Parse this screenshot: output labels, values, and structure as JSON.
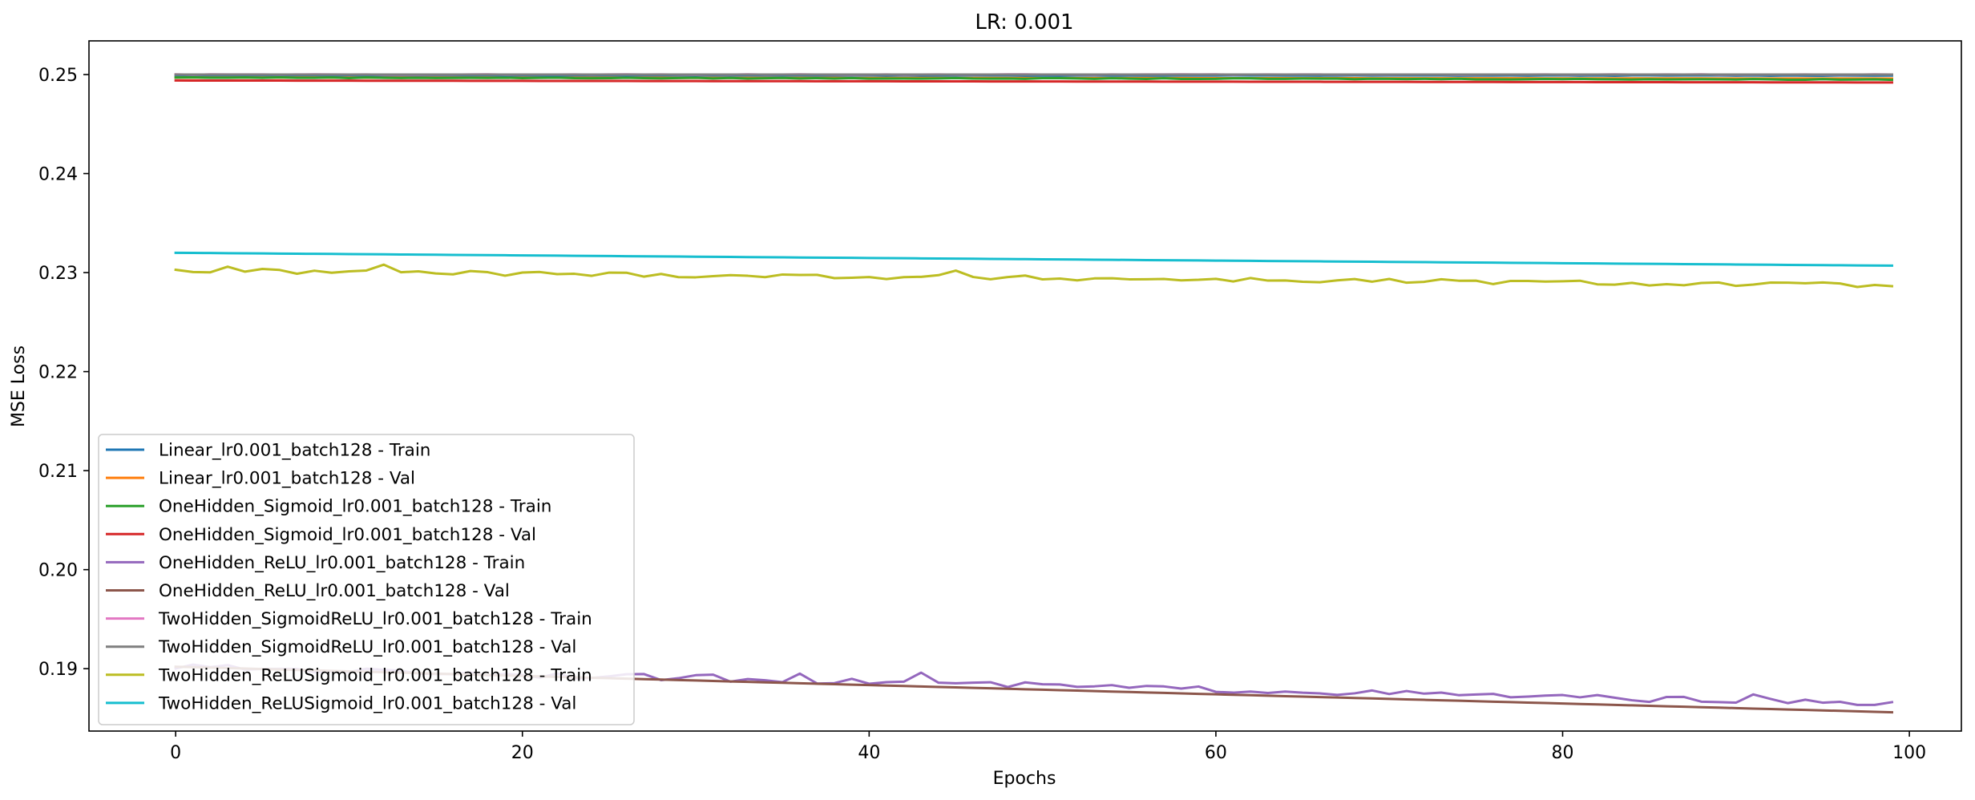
{
  "chart_data": {
    "type": "line",
    "title": "LR: 0.001",
    "xlabel": "Epochs",
    "ylabel": "MSE Loss",
    "xlim": [
      -5,
      103
    ],
    "ylim": [
      0.1837,
      0.2534
    ],
    "xticks": [
      0,
      20,
      40,
      60,
      80,
      100
    ],
    "yticks": [
      0.19,
      0.2,
      0.21,
      0.22,
      0.23,
      0.24,
      0.25
    ],
    "ytick_labels": [
      "0.19",
      "0.20",
      "0.21",
      "0.22",
      "0.23",
      "0.24",
      "0.25"
    ],
    "grid": false,
    "legend_position": "lower-left",
    "series": [
      {
        "name": "Linear_lr0.001_batch128 - Train",
        "color": "#1f77b4",
        "start": 0.2499,
        "end": 0.2499,
        "noise": 2e-05,
        "spikes": []
      },
      {
        "name": "Linear_lr0.001_batch128 - Val",
        "color": "#ff7f0e",
        "start": 0.2497,
        "end": 0.2496,
        "noise": 0.0,
        "spikes": []
      },
      {
        "name": "OneHidden_Sigmoid_lr0.001_batch128 - Train",
        "color": "#2ca02c",
        "start": 0.2497,
        "end": 0.2495,
        "noise": 4e-05,
        "spikes": []
      },
      {
        "name": "OneHidden_Sigmoid_lr0.001_batch128 - Val",
        "color": "#d62728",
        "start": 0.2494,
        "end": 0.2492,
        "noise": 0.0,
        "spikes": []
      },
      {
        "name": "OneHidden_ReLU_lr0.001_batch128 - Train",
        "color": "#9467bd",
        "start": 0.1902,
        "end": 0.1864,
        "noise": 0.0003,
        "spikes": [
          [
            31,
            0.1894
          ],
          [
            36,
            0.1895
          ],
          [
            43,
            0.1896
          ],
          [
            91,
            0.1874
          ]
        ]
      },
      {
        "name": "OneHidden_ReLU_lr0.001_batch128 - Val",
        "color": "#8c564b",
        "start": 0.1902,
        "end": 0.1856,
        "noise": 0.0,
        "spikes": []
      },
      {
        "name": "TwoHidden_SigmoidReLU_lr0.001_batch128 - Train",
        "color": "#e377c2",
        "start": 0.25,
        "end": 0.25,
        "noise": 2e-05,
        "spikes": []
      },
      {
        "name": "TwoHidden_SigmoidReLU_lr0.001_batch128 - Val",
        "color": "#7f7f7f",
        "start": 0.25,
        "end": 0.25,
        "noise": 0.0,
        "spikes": []
      },
      {
        "name": "TwoHidden_ReLUSigmoid_lr0.001_batch128 - Train",
        "color": "#bcbd22",
        "start": 0.2302,
        "end": 0.2287,
        "noise": 0.00025,
        "spikes": [
          [
            3,
            0.2306
          ],
          [
            12,
            0.2308
          ],
          [
            45,
            0.2302
          ]
        ]
      },
      {
        "name": "TwoHidden_ReLUSigmoid_lr0.001_batch128 - Val",
        "color": "#17becf",
        "start": 0.232,
        "end": 0.2307,
        "noise": 0.0,
        "spikes": []
      }
    ]
  }
}
